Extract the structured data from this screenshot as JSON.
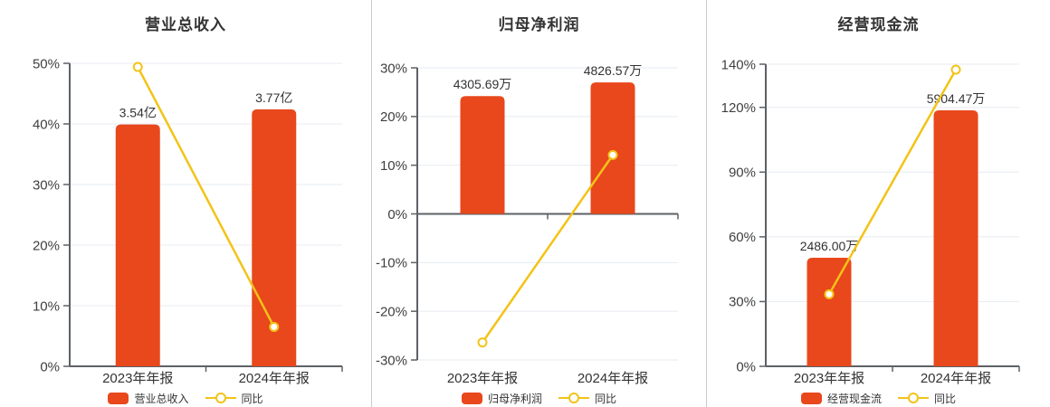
{
  "colors": {
    "bar": "#e8481c",
    "line": "#f3c318",
    "grid": "#e7ebf1",
    "axis": "#5d6166",
    "title_text": "#333333",
    "tick_text": "#3f3f3f",
    "label_text": "#333333",
    "divider": "#c9c9c9",
    "background": "#ffffff"
  },
  "chart_data": [
    {
      "type": "bar+line",
      "title": "营业总收入",
      "categories": [
        "2023年年报",
        "2024年年报"
      ],
      "bar_series": {
        "name": "营业总收入",
        "values": [
          3.54,
          3.77
        ],
        "unit": "亿",
        "labels": [
          "3.54亿",
          "3.77亿"
        ],
        "axis_heights_pct": [
          39.9,
          42.4
        ]
      },
      "line_series": {
        "name": "同比",
        "values_pct": [
          49.4,
          6.5
        ]
      },
      "y_axis": {
        "min": 0,
        "max": 50,
        "ticks": [
          0,
          10,
          20,
          30,
          40,
          50
        ],
        "tick_suffix": "%"
      },
      "grid": true,
      "legend_position": "bottom"
    },
    {
      "type": "bar+line",
      "title": "归母净利润",
      "categories": [
        "2023年年报",
        "2024年年报"
      ],
      "bar_series": {
        "name": "归母净利润",
        "values": [
          4305.69,
          4826.57
        ],
        "unit": "万",
        "labels": [
          "4305.69万",
          "4826.57万"
        ],
        "axis_heights_pct": [
          24.2,
          27.0
        ]
      },
      "line_series": {
        "name": "同比",
        "values_pct": [
          -26.4,
          12.1
        ]
      },
      "y_axis": {
        "min": -30,
        "max": 30,
        "ticks": [
          -30,
          -20,
          -10,
          0,
          10,
          20,
          30
        ],
        "tick_suffix": "%"
      },
      "grid": true,
      "legend_position": "bottom"
    },
    {
      "type": "bar+line",
      "title": "经营现金流",
      "categories": [
        "2023年年报",
        "2024年年报"
      ],
      "bar_series": {
        "name": "经营现金流",
        "values": [
          2486.0,
          5904.47
        ],
        "unit": "万",
        "labels": [
          "2486.00万",
          "5904.47万"
        ],
        "axis_heights_pct": [
          50.3,
          118.6
        ]
      },
      "line_series": {
        "name": "同比",
        "values_pct": [
          33.4,
          137.5
        ]
      },
      "y_axis": {
        "min": 0,
        "max": 140,
        "ticks": [
          0,
          30,
          60,
          90,
          120,
          140
        ],
        "tick_suffix": "%"
      },
      "grid": true,
      "legend_position": "bottom"
    }
  ]
}
